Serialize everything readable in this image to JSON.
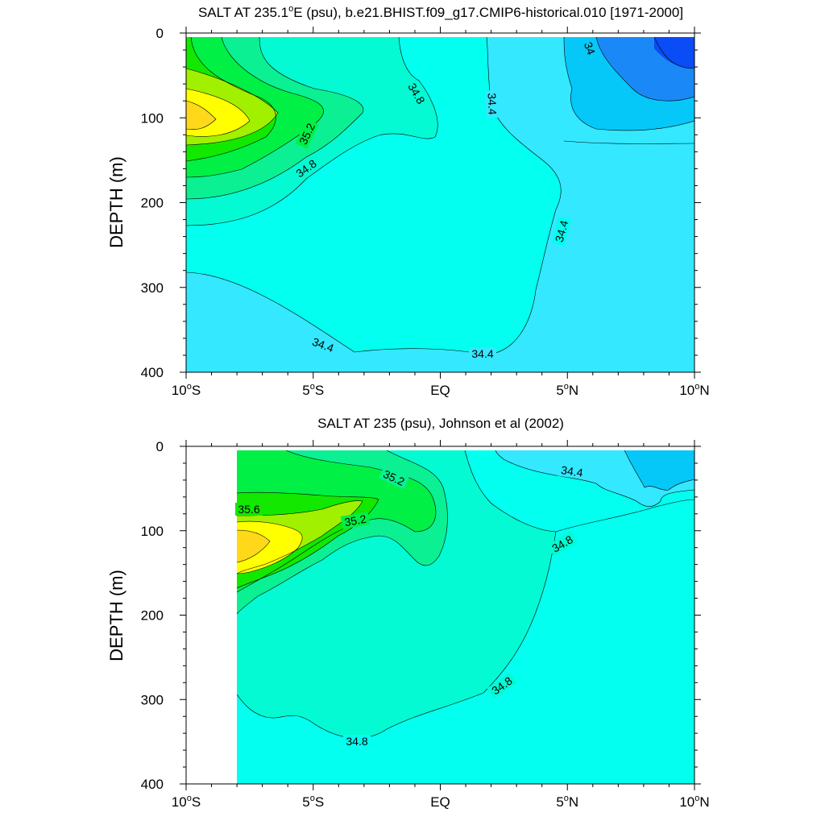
{
  "chart_data": [
    {
      "type": "contour",
      "title": "SALT AT 235.1°E (psu), b.e21.BHIST.f09_g17.CMIP6-historical.010 [1971-2000]",
      "title_parts": {
        "pre": "SALT AT 235.1",
        "sup": "o",
        "post": "E (psu), b.e21.BHIST.f09_g17.CMIP6-historical.010 [1971-2000]"
      },
      "ylabel": "DEPTH (m)",
      "xlim": [
        -10,
        10
      ],
      "ylim": [
        400,
        0
      ],
      "x_ticks": [
        {
          "value": -10,
          "pre": "10",
          "sup": "o",
          "post": "S"
        },
        {
          "value": -5,
          "pre": "5",
          "sup": "o",
          "post": "S"
        },
        {
          "value": 0,
          "pre": "EQ",
          "sup": "",
          "post": ""
        },
        {
          "value": 5,
          "pre": "5",
          "sup": "o",
          "post": "N"
        },
        {
          "value": 10,
          "pre": "10",
          "sup": "o",
          "post": "N"
        }
      ],
      "y_ticks": [
        "0",
        "100",
        "200",
        "300",
        "400"
      ],
      "contour_labels": [
        "34.8",
        "34.4",
        "34",
        "35.2",
        "34.8",
        "34.4",
        "34.4",
        "34.4"
      ],
      "colors": {
        "lt34": "#0a4cf5",
        "34.0": "#1b88f8",
        "34.2": "#05c8f8",
        "34.4": "#33e8ff",
        "34.6": "#02ffef",
        "34.8": "#04fad2",
        "35.0": "#0af092",
        "35.2": "#00f046",
        "35.4": "#12e800",
        "35.6": "#a0f000",
        "35.8": "#ffff00",
        "36.0": "#ffd81a"
      }
    },
    {
      "type": "contour",
      "title": "SALT AT 235 (psu), Johnson et al (2002)",
      "ylabel": "DEPTH (m)",
      "xlim": [
        -10,
        10
      ],
      "ylim": [
        400,
        0
      ],
      "x_ticks": [
        {
          "value": -10,
          "pre": "10",
          "sup": "o",
          "post": "S"
        },
        {
          "value": -5,
          "pre": "5",
          "sup": "o",
          "post": "S"
        },
        {
          "value": 0,
          "pre": "EQ",
          "sup": "",
          "post": ""
        },
        {
          "value": 5,
          "pre": "5",
          "sup": "o",
          "post": "N"
        },
        {
          "value": 10,
          "pre": "10",
          "sup": "o",
          "post": "N"
        }
      ],
      "y_ticks": [
        "0",
        "100",
        "200",
        "300",
        "400"
      ],
      "data_x_start": -8,
      "contour_labels": [
        "35.2",
        "35.6",
        "35.2",
        "34.4",
        "34.8",
        "34.8",
        "34.8"
      ]
    }
  ]
}
